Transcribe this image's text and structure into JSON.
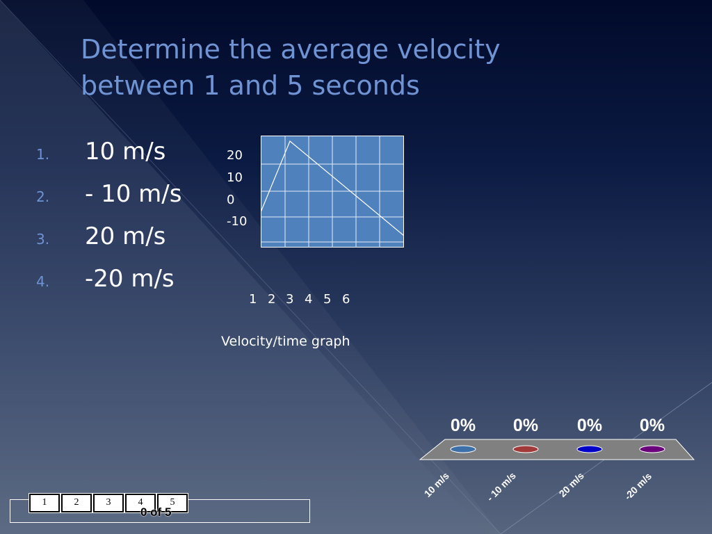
{
  "slide": {
    "title_line1": "Determine the average velocity",
    "title_line2": "between 1 and 5 seconds"
  },
  "answers": [
    {
      "number": "1.",
      "text": "10 m/s"
    },
    {
      "number": "2.",
      "text": "- 10 m/s"
    },
    {
      "number": "3.",
      "text": "20 m/s"
    },
    {
      "number": "4.",
      "text": "-20 m/s"
    }
  ],
  "graph": {
    "y_ticks": [
      "20",
      "10",
      "0",
      "-10"
    ],
    "x_ticks": [
      "1",
      "2",
      "3",
      "4",
      "5",
      "6"
    ],
    "caption": "Velocity/time  graph",
    "background_color": "#4f81bd",
    "line_color": "#ffffff"
  },
  "chart_data": {
    "type": "bar",
    "categories": [
      "10 m/s",
      "- 10 m/s",
      "20 m/s",
      "-20 m/s"
    ],
    "values": [
      0,
      0,
      0,
      0
    ],
    "value_labels": [
      "0%",
      "0%",
      "0%",
      "0%"
    ],
    "unit": "%",
    "series_colors": [
      "#3d6fa8",
      "#a23a3a",
      "#0000c8",
      "#6a007a"
    ],
    "grid": false,
    "legend": "none"
  },
  "navigation": {
    "pages": [
      "1",
      "2",
      "3",
      "4",
      "5"
    ],
    "progress_text": "0 of 5"
  }
}
